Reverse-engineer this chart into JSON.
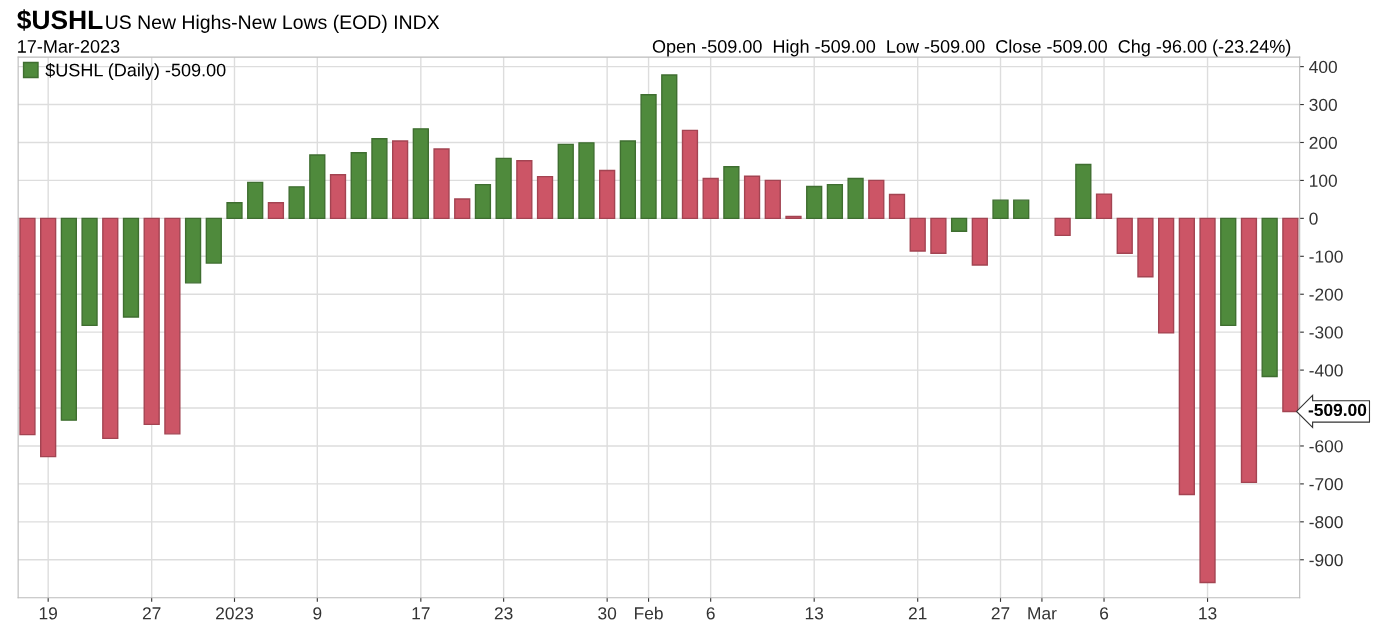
{
  "chart_data": {
    "type": "bar",
    "title": "$USHL",
    "subtitle": "US New Highs-New Lows (EOD) INDX",
    "annotations": [
      "17-Mar-2023",
      "Open -509.00  High -509.00  Low -509.00  Close -509.00  Chg -96.00 (-23.24%)",
      "-509.00"
    ],
    "categories": [
      null,
      "19",
      null,
      null,
      null,
      null,
      "27",
      null,
      null,
      null,
      "2023",
      null,
      null,
      null,
      "9",
      null,
      null,
      null,
      null,
      "17",
      null,
      null,
      null,
      "23",
      null,
      null,
      null,
      null,
      "30",
      null,
      "Feb",
      null,
      null,
      "6",
      null,
      null,
      null,
      null,
      "13",
      null,
      null,
      null,
      null,
      "21",
      null,
      null,
      null,
      "27",
      null,
      "Mar",
      null,
      null,
      "6",
      null,
      null,
      null,
      null,
      "13",
      null,
      null,
      null,
      null
    ],
    "series": [
      {
        "name": "$USHL (Daily) -509.00",
        "color": "#4f8a3c",
        "values": [
          -570,
          -628,
          -532,
          -282,
          -580,
          -260,
          -543,
          -568,
          -170,
          -118,
          41,
          95,
          41,
          83,
          167,
          115,
          173,
          210,
          204,
          236,
          183,
          51,
          89,
          158,
          152,
          110,
          195,
          199,
          126,
          204,
          326,
          378,
          232,
          105,
          136,
          111,
          100,
          5,
          84,
          89,
          105,
          100,
          63,
          -86,
          -92,
          -34,
          -123,
          48,
          48,
          null,
          -45,
          142,
          64,
          -92,
          -154,
          -302,
          -728,
          -960,
          -282,
          -696,
          -417,
          -509
        ],
        "colors": [
          "#cc5566",
          "#cc5566",
          "#4f8a3c",
          "#4f8a3c",
          "#cc5566",
          "#4f8a3c",
          "#cc5566",
          "#cc5566",
          "#4f8a3c",
          "#4f8a3c",
          "#4f8a3c",
          "#4f8a3c",
          "#cc5566",
          "#4f8a3c",
          "#4f8a3c",
          "#cc5566",
          "#4f8a3c",
          "#4f8a3c",
          "#cc5566",
          "#4f8a3c",
          "#cc5566",
          "#cc5566",
          "#4f8a3c",
          "#4f8a3c",
          "#cc5566",
          "#cc5566",
          "#4f8a3c",
          "#4f8a3c",
          "#cc5566",
          "#4f8a3c",
          "#4f8a3c",
          "#4f8a3c",
          "#cc5566",
          "#cc5566",
          "#4f8a3c",
          "#cc5566",
          "#cc5566",
          "#cc5566",
          "#4f8a3c",
          "#4f8a3c",
          "#4f8a3c",
          "#cc5566",
          "#cc5566",
          "#cc5566",
          "#cc5566",
          "#4f8a3c",
          "#cc5566",
          "#4f8a3c",
          "#4f8a3c",
          "#4f8a3c",
          "#cc5566",
          "#4f8a3c",
          "#cc5566",
          "#cc5566",
          "#cc5566",
          "#cc5566",
          "#cc5566",
          "#cc5566",
          "#4f8a3c",
          "#cc5566",
          "#4f8a3c",
          "#cc5566"
        ]
      }
    ],
    "ylim": [
      -1000,
      425
    ],
    "yticks": [
      400,
      300,
      200,
      100,
      0,
      -100,
      -200,
      -300,
      -400,
      {
        "value": -500,
        "label": null
      },
      -600,
      -700,
      -800,
      -900
    ],
    "grid": true,
    "legend": "top left"
  }
}
